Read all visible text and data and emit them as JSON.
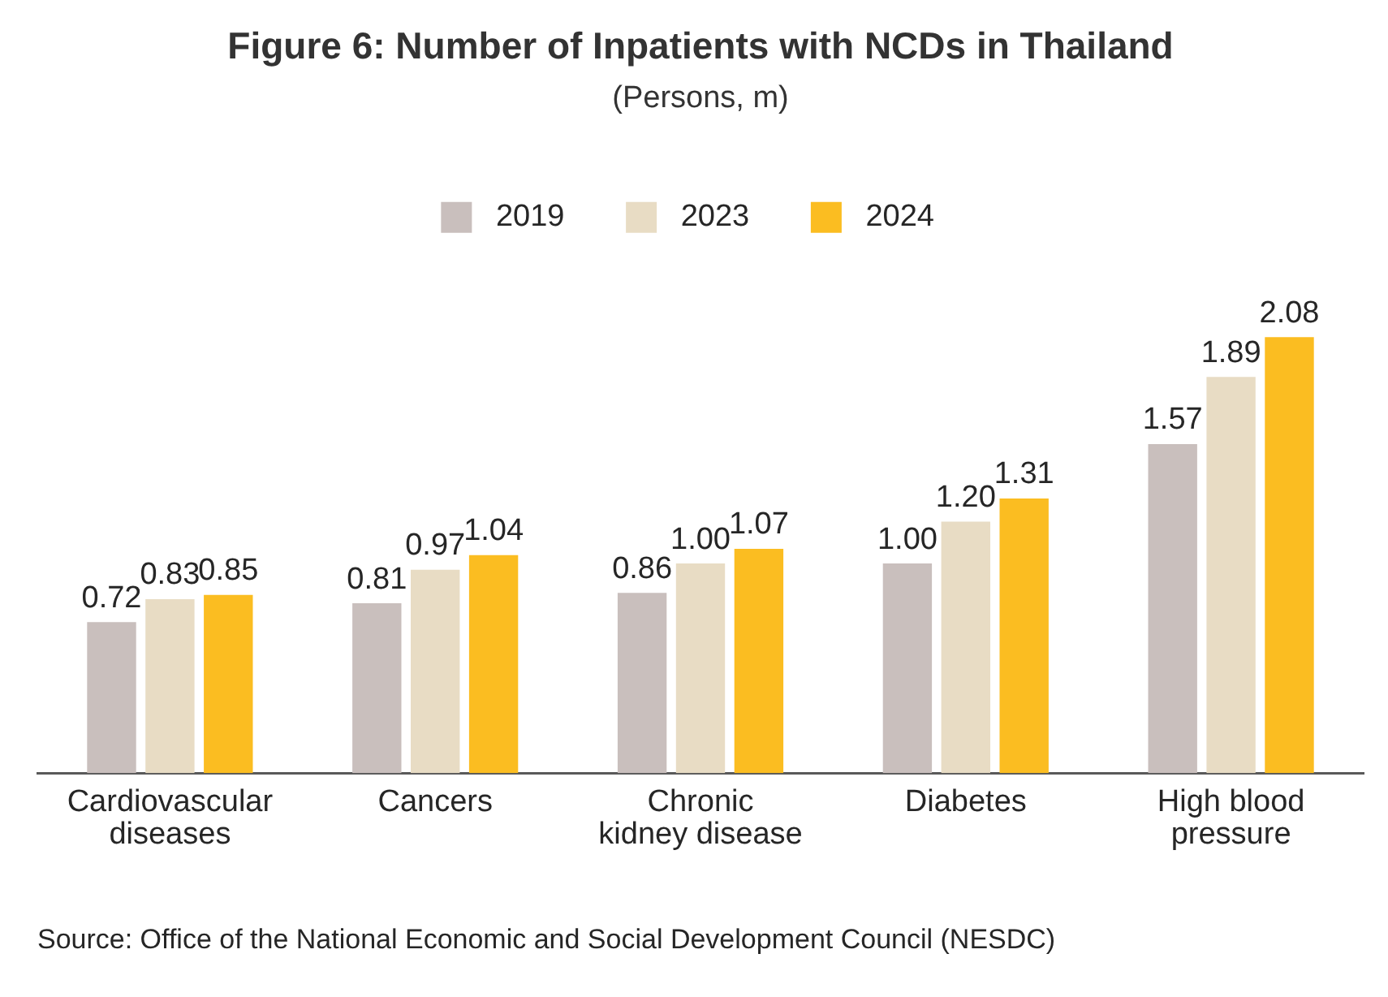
{
  "chart_data": {
    "type": "bar",
    "title": "Figure 6: Number of Inpatients with NCDs in Thailand",
    "subtitle": "(Persons, m)",
    "categories": [
      "Cardiovascular\ndiseases",
      "Cancers",
      "Chronic\nkidney disease",
      "Diabetes",
      "High blood\npressure"
    ],
    "series": [
      {
        "name": "2019",
        "color": "#c9bfbd",
        "values": [
          0.72,
          0.81,
          0.86,
          1.0,
          1.57
        ],
        "value_labels": [
          "0.72",
          "0.81",
          "0.86",
          "1.00",
          "1.57"
        ]
      },
      {
        "name": "2023",
        "color": "#e8dcc4",
        "values": [
          0.83,
          0.97,
          1.0,
          1.2,
          1.89
        ],
        "value_labels": [
          "0.83",
          "0.97",
          "1.00",
          "1.20",
          "1.89"
        ]
      },
      {
        "name": "2024",
        "color": "#fbbd21",
        "values": [
          0.85,
          1.04,
          1.07,
          1.31,
          2.08
        ],
        "value_labels": [
          "0.85",
          "1.04",
          "1.07",
          "1.31",
          "2.08"
        ]
      }
    ],
    "legend": "top",
    "grid": false,
    "tick_labels": "x",
    "annotations": [
      "Source: Office of the National Economic and Social Development Council (NESDC)"
    ]
  }
}
